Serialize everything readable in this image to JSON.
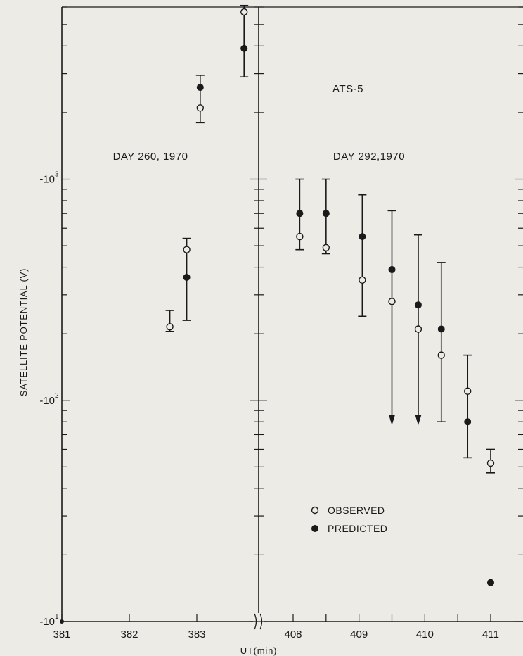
{
  "chart_data": {
    "type": "scatter",
    "ylabel": "SATELLITE POTENTIAL (V)",
    "xlabel": "UT(min)",
    "y_scale": "log",
    "ylim": [
      -10,
      -6000
    ],
    "y_ticks": [
      {
        "value": -1000,
        "label": "-10",
        "exp": "3"
      },
      {
        "value": -100,
        "label": "-10",
        "exp": "2"
      },
      {
        "value": -10,
        "label": "-10",
        "exp": "1"
      }
    ],
    "x_axis_break": true,
    "panels": [
      {
        "label": "DAY 260, 1970",
        "xlim": [
          381,
          383.8
        ],
        "x_ticks": [
          {
            "value": 381,
            "label": "381"
          },
          {
            "value": 382,
            "label": "382"
          },
          {
            "value": 383,
            "label": "383"
          }
        ],
        "series": [
          {
            "name": "OBSERVED",
            "marker": "open-circle",
            "points": [
              {
                "x": 382.6,
                "y": -215,
                "err_low": -205,
                "err_high": -255
              },
              {
                "x": 382.85,
                "y": -480,
                "err_low": -230,
                "err_high": -540
              },
              {
                "x": 383.05,
                "y": -2100,
                "err_low": -1800,
                "err_high": -2950
              },
              {
                "x": 383.7,
                "y": -5700,
                "err_low": -2900,
                "err_high": -6100
              }
            ]
          },
          {
            "name": "PREDICTED",
            "marker": "filled-circle",
            "points": [
              {
                "x": 382.85,
                "y": -360
              },
              {
                "x": 383.05,
                "y": -2600
              },
              {
                "x": 383.7,
                "y": -3900
              }
            ]
          }
        ]
      },
      {
        "label": "DAY 292,1970",
        "xlim": [
          407.6,
          411.3
        ],
        "x_ticks": [
          {
            "value": 408,
            "label": "408"
          },
          {
            "value": 408.5,
            "label": ""
          },
          {
            "value": 409,
            "label": "409"
          },
          {
            "value": 409.5,
            "label": ""
          },
          {
            "value": 410,
            "label": "410"
          },
          {
            "value": 410.5,
            "label": ""
          },
          {
            "value": 411,
            "label": "411"
          }
        ],
        "series": [
          {
            "name": "OBSERVED",
            "marker": "open-circle",
            "points": [
              {
                "x": 408.1,
                "y": -550,
                "err_low": -480,
                "err_high": -1000
              },
              {
                "x": 408.5,
                "y": -490,
                "err_low": -460,
                "err_high": -1000
              },
              {
                "x": 409.05,
                "y": -350,
                "err_low": -240,
                "err_high": -850
              },
              {
                "x": 409.5,
                "y": -280,
                "err_low": -80,
                "err_high": -720
              },
              {
                "x": 409.9,
                "y": -210,
                "err_low": -80,
                "err_high": -560
              },
              {
                "x": 410.25,
                "y": -160,
                "err_low": -80,
                "err_high": -420
              },
              {
                "x": 410.65,
                "y": -110,
                "err_low": -55,
                "err_high": -160
              },
              {
                "x": 411.0,
                "y": -52,
                "err_low": -47,
                "err_high": -60
              }
            ]
          },
          {
            "name": "PREDICTED",
            "marker": "filled-circle",
            "points": [
              {
                "x": 408.1,
                "y": -700
              },
              {
                "x": 408.5,
                "y": -700
              },
              {
                "x": 409.05,
                "y": -550
              },
              {
                "x": 409.5,
                "y": -390
              },
              {
                "x": 409.9,
                "y": -270
              },
              {
                "x": 410.25,
                "y": -210
              },
              {
                "x": 410.65,
                "y": -80
              },
              {
                "x": 411.0,
                "y": -15
              }
            ]
          }
        ]
      }
    ],
    "annotations": [
      {
        "text": "ATS-5"
      }
    ],
    "legend": {
      "placement": "lower-right",
      "entries": [
        {
          "label": "OBSERVED",
          "marker": "open-circle"
        },
        {
          "label": "PREDICTED",
          "marker": "filled-circle"
        }
      ]
    },
    "colors": {
      "ink": "#1a1a1a",
      "paper": "#ecebe6"
    }
  }
}
